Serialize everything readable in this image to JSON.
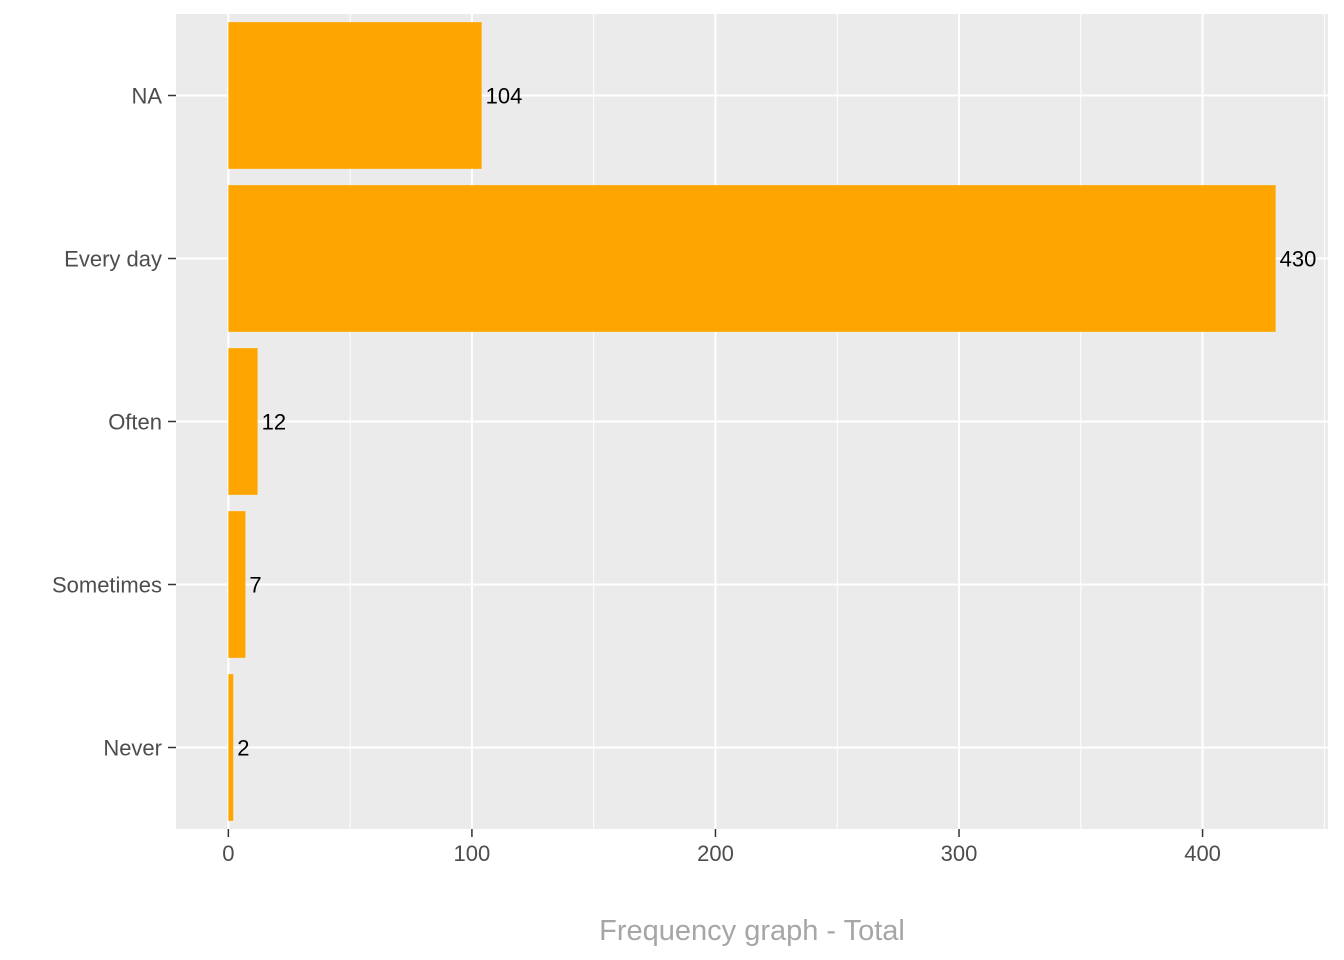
{
  "chart_data": {
    "type": "bar",
    "orientation": "horizontal",
    "categories": [
      "NA",
      "Every day",
      "Often",
      "Sometimes",
      "Never"
    ],
    "values": [
      104,
      430,
      12,
      7,
      2
    ],
    "data_labels": [
      "104",
      "430",
      "12",
      "7",
      "2"
    ],
    "xlabel": "Frequency graph - Total",
    "ylabel": "",
    "xlim": [
      -21.5,
      451.5
    ],
    "x_ticks": [
      0,
      100,
      200,
      300,
      400
    ],
    "x_tick_labels": [
      "0",
      "100",
      "200",
      "300",
      "400"
    ],
    "grid": true,
    "legend": "none"
  },
  "colors": {
    "bar": "#FFA500",
    "panel_background": "#EBEBEB",
    "gridline": "#FFFFFF",
    "tick_text": "#4D4D4D",
    "data_label_text": "#000000",
    "axis_title_text": "#A6A6A6",
    "tick_mark": "#333333"
  }
}
